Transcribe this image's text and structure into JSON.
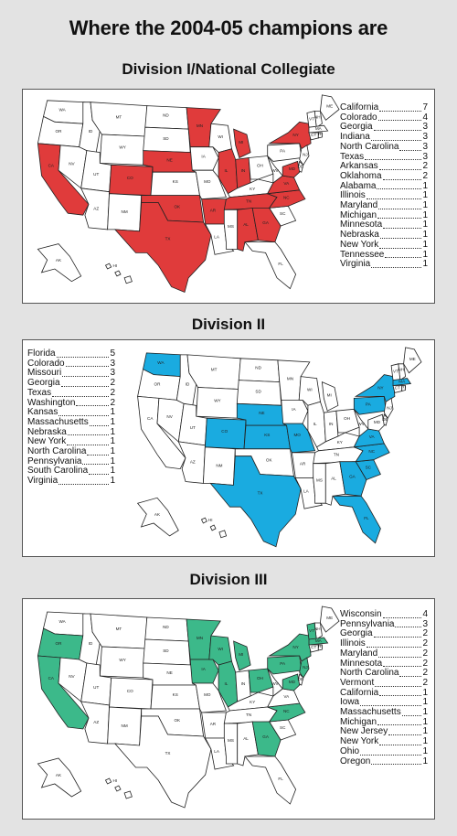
{
  "title": "Where the 2004-05 champions are",
  "divisions": [
    {
      "title": "Division I/National Collegiate",
      "color": "#e03b3b",
      "states": [
        {
          "name": "California",
          "count": "7"
        },
        {
          "name": "Colorado",
          "count": "4"
        },
        {
          "name": "Georgia",
          "count": "3"
        },
        {
          "name": "Indiana",
          "count": "3"
        },
        {
          "name": "North Carolina",
          "count": "3"
        },
        {
          "name": "Texas",
          "count": "3"
        },
        {
          "name": "Arkansas",
          "count": "2"
        },
        {
          "name": "Oklahoma",
          "count": "2"
        },
        {
          "name": "Alabama",
          "count": "1"
        },
        {
          "name": "Illinois",
          "count": "1"
        },
        {
          "name": "Maryland",
          "count": "1"
        },
        {
          "name": "Michigan",
          "count": "1"
        },
        {
          "name": "Minnesota",
          "count": "1"
        },
        {
          "name": "Nebraska",
          "count": "1"
        },
        {
          "name": "New York",
          "count": "1"
        },
        {
          "name": "Tennessee",
          "count": "1"
        },
        {
          "name": "Virginia",
          "count": "1"
        }
      ],
      "highlighted": [
        "CA",
        "CO",
        "GA",
        "IN",
        "NC",
        "TX",
        "AR",
        "OK",
        "AL",
        "IL",
        "MD",
        "MI",
        "MN",
        "NE",
        "NY",
        "TN",
        "VA"
      ]
    },
    {
      "title": "Division II",
      "color": "#1aabe0",
      "states": [
        {
          "name": "Florida",
          "count": "5"
        },
        {
          "name": "Colorado",
          "count": "3"
        },
        {
          "name": "Missouri",
          "count": "3"
        },
        {
          "name": "Georgia",
          "count": "2"
        },
        {
          "name": "Texas",
          "count": "2"
        },
        {
          "name": "Washington",
          "count": "2"
        },
        {
          "name": "Kansas",
          "count": "1"
        },
        {
          "name": "Massachusetts",
          "count": "1"
        },
        {
          "name": "Nebraska",
          "count": "1"
        },
        {
          "name": "New York",
          "count": "1"
        },
        {
          "name": "North Carolina",
          "count": "1"
        },
        {
          "name": "Pennsylvania",
          "count": "1"
        },
        {
          "name": "South Carolina",
          "count": "1"
        },
        {
          "name": "Virginia",
          "count": "1"
        }
      ],
      "highlighted": [
        "FL",
        "CO",
        "MO",
        "GA",
        "TX",
        "WA",
        "KS",
        "MA",
        "NE",
        "NY",
        "NC",
        "PA",
        "SC",
        "VA"
      ]
    },
    {
      "title": "Division III",
      "color": "#3cb98a",
      "states": [
        {
          "name": "Wisconsin",
          "count": "4"
        },
        {
          "name": "Pennsylvania",
          "count": "3"
        },
        {
          "name": "Georgia",
          "count": "2"
        },
        {
          "name": "Illinois",
          "count": "2"
        },
        {
          "name": "Maryland",
          "count": "2"
        },
        {
          "name": "Minnesota",
          "count": "2"
        },
        {
          "name": "North Carolina",
          "count": "2"
        },
        {
          "name": "Vermont",
          "count": "2"
        },
        {
          "name": "California",
          "count": "1"
        },
        {
          "name": "Iowa",
          "count": "1"
        },
        {
          "name": "Massachusetts",
          "count": "1"
        },
        {
          "name": "Michigan",
          "count": "1"
        },
        {
          "name": "New Jersey",
          "count": "1"
        },
        {
          "name": "New York",
          "count": "1"
        },
        {
          "name": "Ohio",
          "count": "1"
        },
        {
          "name": "Oregon",
          "count": "1"
        }
      ],
      "highlighted": [
        "WI",
        "PA",
        "GA",
        "IL",
        "MD",
        "MN",
        "NC",
        "VT",
        "CA",
        "IA",
        "MA",
        "MI",
        "NJ",
        "NY",
        "OH",
        "OR"
      ]
    }
  ],
  "state_labels": [
    "WA",
    "OR",
    "CA",
    "NV",
    "ID",
    "MT",
    "WY",
    "UT",
    "AZ",
    "CO",
    "NM",
    "ND",
    "SD",
    "NE",
    "KS",
    "OK",
    "TX",
    "MN",
    "IA",
    "MO",
    "AR",
    "LA",
    "WI",
    "IL",
    "MI",
    "IN",
    "OH",
    "KY",
    "TN",
    "MS",
    "AL",
    "GA",
    "FL",
    "SC",
    "NC",
    "VA",
    "WV",
    "PA",
    "NY",
    "ME",
    "NH",
    "VT",
    "MA",
    "CT",
    "RI",
    "NJ",
    "DE",
    "MD",
    "AK",
    "HI"
  ]
}
